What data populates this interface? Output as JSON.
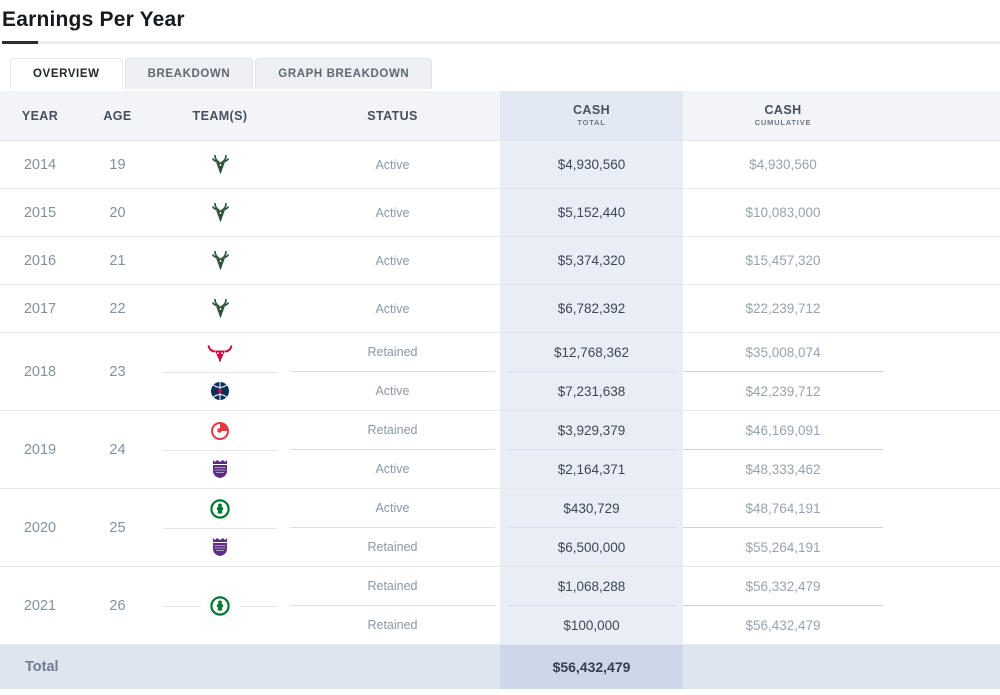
{
  "page_title": "Earnings Per Year",
  "tabs": [
    {
      "label": "OVERVIEW",
      "active": true
    },
    {
      "label": "BREAKDOWN",
      "active": false
    },
    {
      "label": "GRAPH BREAKDOWN",
      "active": false
    }
  ],
  "table": {
    "headers": {
      "year": "YEAR",
      "age": "AGE",
      "teams": "TEAM(S)",
      "status": "STATUS",
      "cash_total_line1": "CASH",
      "cash_total_line2": "TOTAL",
      "cash_cumulative_line1": "CASH",
      "cash_cumulative_line2": "CUMULATIVE"
    },
    "rows": [
      {
        "year": "2014",
        "age": "19",
        "logos": [
          {
            "icon": "bucks-logo",
            "team": "Milwaukee Bucks"
          }
        ],
        "stints": [
          {
            "status": "Active",
            "cash": "$4,930,560",
            "cumulative": "$4,930,560"
          }
        ]
      },
      {
        "year": "2015",
        "age": "20",
        "logos": [
          {
            "icon": "bucks-logo",
            "team": "Milwaukee Bucks"
          }
        ],
        "stints": [
          {
            "status": "Active",
            "cash": "$5,152,440",
            "cumulative": "$10,083,000"
          }
        ]
      },
      {
        "year": "2016",
        "age": "21",
        "logos": [
          {
            "icon": "bucks-logo",
            "team": "Milwaukee Bucks"
          }
        ],
        "stints": [
          {
            "status": "Active",
            "cash": "$5,374,320",
            "cumulative": "$15,457,320"
          }
        ]
      },
      {
        "year": "2017",
        "age": "22",
        "logos": [
          {
            "icon": "bucks-logo",
            "team": "Milwaukee Bucks"
          }
        ],
        "stints": [
          {
            "status": "Active",
            "cash": "$6,782,392",
            "cumulative": "$22,239,712"
          }
        ]
      },
      {
        "year": "2018",
        "age": "23",
        "logos": [
          {
            "icon": "bulls-logo",
            "team": "Chicago Bulls"
          },
          {
            "icon": "wizards-logo",
            "team": "Washington Wizards"
          }
        ],
        "stints": [
          {
            "status": "Retained",
            "cash": "$12,768,362",
            "cumulative": "$35,008,074"
          },
          {
            "status": "Active",
            "cash": "$7,231,638",
            "cumulative": "$42,239,712"
          }
        ]
      },
      {
        "year": "2019",
        "age": "24",
        "logos": [
          {
            "icon": "hawks-logo",
            "team": "Atlanta Hawks"
          },
          {
            "icon": "kings-logo",
            "team": "Sacramento Kings"
          }
        ],
        "stints": [
          {
            "status": "Retained",
            "cash": "$3,929,379",
            "cumulative": "$46,169,091"
          },
          {
            "status": "Active",
            "cash": "$2,164,371",
            "cumulative": "$48,333,462"
          }
        ]
      },
      {
        "year": "2020",
        "age": "25",
        "logos": [
          {
            "icon": "celtics-logo",
            "team": "Boston Celtics"
          },
          {
            "icon": "kings-logo",
            "team": "Sacramento Kings"
          }
        ],
        "stints": [
          {
            "status": "Active",
            "cash": "$430,729",
            "cumulative": "$48,764,191"
          },
          {
            "status": "Retained",
            "cash": "$6,500,000",
            "cumulative": "$55,264,191"
          }
        ]
      },
      {
        "year": "2021",
        "age": "26",
        "logos": [
          {
            "icon": "celtics-logo",
            "team": "Boston Celtics"
          }
        ],
        "single_logo_spans_both": true,
        "stints": [
          {
            "status": "Retained",
            "cash": "$1,068,288",
            "cumulative": "$56,332,479"
          },
          {
            "status": "Retained",
            "cash": "$100,000",
            "cumulative": "$56,432,479"
          }
        ]
      }
    ],
    "total": {
      "label": "Total",
      "cash_total": "$56,432,479"
    }
  },
  "colors": {
    "cash_column_highlight": "#e9eef6",
    "cash_header_highlight": "#e3e9f3",
    "total_row_bg": "#dfe5ef",
    "total_cash_cell_bg": "#ccd7e9",
    "bucks_green": "#2c5234",
    "bulls_red": "#ce1141",
    "wizards_navy": "#0b2e5b",
    "hawks_red": "#e03a3e",
    "kings_purple": "#5a2d81",
    "celtics_green": "#007a33"
  }
}
